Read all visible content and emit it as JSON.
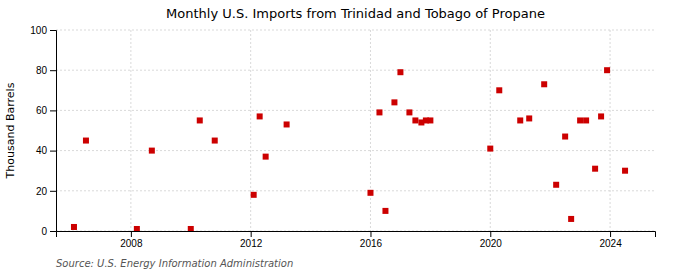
{
  "chart_data": {
    "type": "scatter",
    "title": "Monthly U.S. Imports from Trinidad and Tobago of Propane",
    "ylabel": "Thousand Barrels",
    "source": "Source: U.S. Energy Information Administration",
    "color": "#cc0000",
    "marker": "square",
    "grid": true,
    "xlim": [
      2005.5,
      2025.5
    ],
    "ylim": [
      0,
      100
    ],
    "xticks": [
      2008,
      2012,
      2016,
      2020,
      2024
    ],
    "yticks": [
      0,
      20,
      40,
      60,
      80,
      100
    ],
    "x": [
      2006.1,
      2006.5,
      2008.2,
      2008.7,
      2010.0,
      2010.3,
      2010.8,
      2012.1,
      2012.3,
      2012.5,
      2013.2,
      2016.0,
      2016.3,
      2016.5,
      2016.8,
      2017.0,
      2017.3,
      2017.5,
      2017.7,
      2017.85,
      2018.0,
      2020.0,
      2020.3,
      2021.0,
      2021.3,
      2021.8,
      2022.2,
      2022.5,
      2022.7,
      2023.0,
      2023.2,
      2023.5,
      2023.7,
      2023.9,
      2024.5
    ],
    "values": [
      2,
      45,
      1,
      40,
      1,
      55,
      45,
      18,
      57,
      37,
      53,
      19,
      59,
      10,
      64,
      79,
      59,
      55,
      54,
      55,
      55,
      41,
      70,
      55,
      56,
      73,
      23,
      47,
      6,
      55,
      55,
      31,
      57,
      80,
      30
    ]
  }
}
